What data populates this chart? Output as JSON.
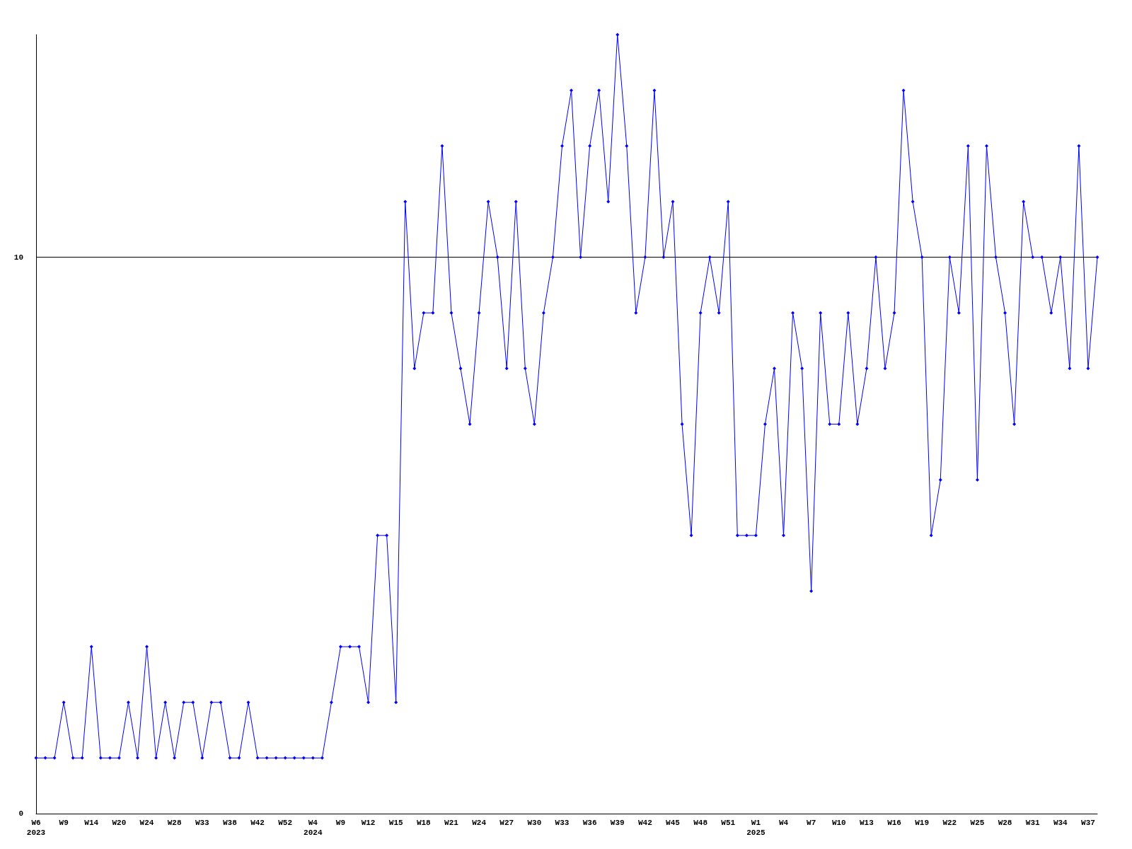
{
  "chart_data": {
    "type": "line",
    "categories": [
      "W6\n2023",
      null,
      null,
      "W9",
      null,
      null,
      "W14",
      null,
      null,
      "W20",
      null,
      null,
      "W24",
      null,
      null,
      "W28",
      null,
      null,
      "W33",
      null,
      null,
      "W38",
      null,
      null,
      "W42",
      null,
      null,
      "W52",
      null,
      null,
      "W4\n2024",
      null,
      null,
      "W9",
      null,
      null,
      "W12",
      null,
      null,
      "W15",
      null,
      null,
      "W18",
      null,
      null,
      "W21",
      null,
      null,
      "W24",
      null,
      null,
      "W27",
      null,
      null,
      "W30",
      null,
      null,
      "W33",
      null,
      null,
      "W36",
      null,
      null,
      "W39",
      null,
      null,
      "W42",
      null,
      null,
      "W45",
      null,
      null,
      "W48",
      null,
      null,
      "W51",
      null,
      null,
      "W1\n2025",
      null,
      null,
      "W4",
      null,
      null,
      "W7",
      null,
      null,
      "W10",
      null,
      null,
      "W13",
      null,
      null,
      "W16",
      null,
      null,
      "W19",
      null,
      null,
      "W22",
      null,
      null,
      "W25",
      null,
      null,
      "W28",
      null,
      null,
      "W31",
      null,
      null,
      "W34",
      null,
      null,
      "W37",
      null
    ],
    "series": [
      {
        "color": "#0000ff",
        "values": [
          1,
          1,
          1,
          2,
          1,
          1,
          3,
          1,
          1,
          1,
          2,
          1,
          3,
          1,
          2,
          1,
          2,
          2,
          1,
          2,
          2,
          1,
          1,
          2,
          1,
          1,
          1,
          1,
          1,
          1,
          1,
          1,
          2,
          3,
          3,
          3,
          2,
          5,
          5,
          2,
          11,
          8,
          9,
          9,
          12,
          9,
          8,
          7,
          9,
          11,
          10,
          8,
          11,
          8,
          7,
          9,
          10,
          12,
          13,
          10,
          12,
          13,
          11,
          14,
          12,
          9,
          10,
          13,
          10,
          11,
          7,
          5,
          9,
          10,
          9,
          11,
          5,
          5,
          5,
          7,
          8,
          5,
          9,
          8,
          4,
          9,
          7,
          7,
          9,
          7,
          8,
          10,
          8,
          9,
          13,
          11,
          10,
          5,
          6,
          10,
          9,
          12,
          6,
          12,
          10,
          9,
          7,
          11,
          10,
          10,
          9,
          10,
          8,
          12,
          8,
          10
        ]
      }
    ],
    "ylim": [
      0,
      14
    ],
    "yticks": [
      0,
      10
    ],
    "grid": "y",
    "marker": "diamond",
    "line_style": "solid"
  }
}
